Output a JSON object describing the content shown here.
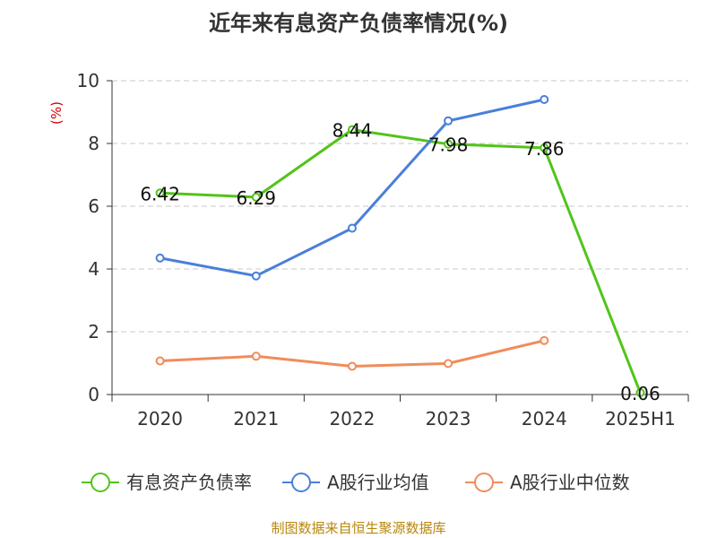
{
  "chart_data": {
    "type": "line",
    "title": "近年来有息资产负债率情况(%)",
    "ylabel": "(%)",
    "xlabel": "",
    "categories": [
      "2020",
      "2021",
      "2022",
      "2023",
      "2024",
      "2025H1"
    ],
    "ylim": [
      0,
      10
    ],
    "yticks": [
      0,
      2,
      4,
      6,
      8,
      10
    ],
    "grid": true,
    "legend_position": "bottom",
    "series": [
      {
        "name": "有息资产负债率",
        "color": "#52c41a",
        "values": [
          6.42,
          6.29,
          8.44,
          7.98,
          7.86,
          0.06
        ],
        "labels": [
          "6.42",
          "6.29",
          "8.44",
          "7.98",
          "7.86",
          "0.06"
        ]
      },
      {
        "name": "A股行业均值",
        "color": "#4a7fd9",
        "values": [
          4.35,
          3.78,
          5.3,
          8.72,
          9.4,
          null
        ]
      },
      {
        "name": "A股行业中位数",
        "color": "#f08c5a",
        "values": [
          1.07,
          1.22,
          0.9,
          0.99,
          1.72,
          null
        ]
      }
    ],
    "source": "制图数据来自恒生聚源数据库"
  }
}
